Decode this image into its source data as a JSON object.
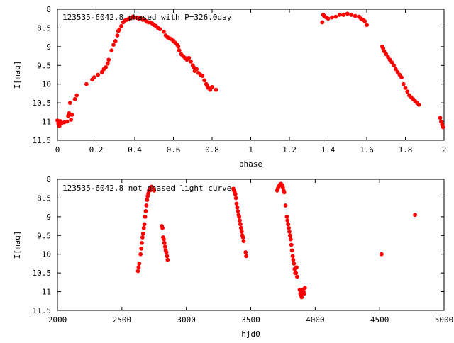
{
  "chart_data": [
    {
      "type": "scatter",
      "title": "123535-6042.8 phased with P=326.0day",
      "xlabel": "phase",
      "ylabel": "I[mag]",
      "xlim": [
        0,
        2
      ],
      "ylim": [
        11.5,
        8
      ],
      "y_inverted": true,
      "grid": false,
      "x_ticks": [
        "0",
        "0.2",
        "0.4",
        "0.6",
        "0.8",
        "1",
        "1.2",
        "1.4",
        "1.6",
        "1.8",
        "2"
      ],
      "x_tick_values": [
        0,
        0.2,
        0.4,
        0.6,
        0.8,
        1.0,
        1.2,
        1.4,
        1.6,
        1.8,
        2.0
      ],
      "y_ticks": [
        "8",
        "8.5",
        "9",
        "9.5",
        "10",
        "10.5",
        "11",
        "11.5"
      ],
      "y_tick_values": [
        8,
        8.5,
        9,
        9.5,
        10,
        10.5,
        11,
        11.5
      ],
      "marker_color": "#ff0000",
      "points": [
        [
          0.0,
          10.97
        ],
        [
          0.005,
          11.05
        ],
        [
          0.01,
          11.12
        ],
        [
          0.015,
          10.99
        ],
        [
          0.02,
          11.05
        ],
        [
          0.035,
          11.02
        ],
        [
          0.05,
          11.0
        ],
        [
          0.055,
          10.85
        ],
        [
          0.06,
          10.78
        ],
        [
          0.065,
          10.5
        ],
        [
          0.07,
          10.95
        ],
        [
          0.075,
          10.82
        ],
        [
          0.09,
          10.4
        ],
        [
          0.1,
          10.3
        ],
        [
          0.15,
          10.0
        ],
        [
          0.18,
          9.88
        ],
        [
          0.19,
          9.82
        ],
        [
          0.21,
          9.75
        ],
        [
          0.23,
          9.68
        ],
        [
          0.24,
          9.6
        ],
        [
          0.25,
          9.55
        ],
        [
          0.26,
          9.45
        ],
        [
          0.265,
          9.35
        ],
        [
          0.28,
          9.1
        ],
        [
          0.29,
          8.95
        ],
        [
          0.3,
          8.85
        ],
        [
          0.31,
          8.7
        ],
        [
          0.315,
          8.58
        ],
        [
          0.32,
          8.55
        ],
        [
          0.33,
          8.45
        ],
        [
          0.34,
          8.35
        ],
        [
          0.35,
          8.3
        ],
        [
          0.36,
          8.28
        ],
        [
          0.37,
          8.25
        ],
        [
          0.38,
          8.24
        ],
        [
          0.39,
          8.2
        ],
        [
          0.4,
          8.22
        ],
        [
          0.41,
          8.22
        ],
        [
          0.42,
          8.25
        ],
        [
          0.43,
          8.23
        ],
        [
          0.44,
          8.28
        ],
        [
          0.45,
          8.28
        ],
        [
          0.46,
          8.32
        ],
        [
          0.47,
          8.35
        ],
        [
          0.48,
          8.35
        ],
        [
          0.49,
          8.38
        ],
        [
          0.5,
          8.42
        ],
        [
          0.51,
          8.45
        ],
        [
          0.52,
          8.5
        ],
        [
          0.53,
          8.53
        ],
        [
          0.55,
          8.6
        ],
        [
          0.56,
          8.7
        ],
        [
          0.57,
          8.75
        ],
        [
          0.58,
          8.78
        ],
        [
          0.59,
          8.8
        ],
        [
          0.6,
          8.85
        ],
        [
          0.61,
          8.9
        ],
        [
          0.62,
          8.95
        ],
        [
          0.625,
          9.0
        ],
        [
          0.63,
          9.1
        ],
        [
          0.64,
          9.2
        ],
        [
          0.65,
          9.25
        ],
        [
          0.66,
          9.3
        ],
        [
          0.67,
          9.35
        ],
        [
          0.68,
          9.3
        ],
        [
          0.69,
          9.4
        ],
        [
          0.7,
          9.5
        ],
        [
          0.705,
          9.55
        ],
        [
          0.71,
          9.65
        ],
        [
          0.72,
          9.6
        ],
        [
          0.73,
          9.7
        ],
        [
          0.74,
          9.75
        ],
        [
          0.75,
          9.78
        ],
        [
          0.76,
          9.9
        ],
        [
          0.77,
          10.0
        ],
        [
          0.775,
          10.05
        ],
        [
          0.78,
          10.1
        ],
        [
          0.79,
          10.15
        ],
        [
          0.8,
          10.08
        ],
        [
          0.82,
          10.15
        ],
        [
          1.37,
          8.35
        ],
        [
          1.375,
          8.15
        ],
        [
          1.38,
          8.18
        ],
        [
          1.39,
          8.22
        ],
        [
          1.4,
          8.25
        ],
        [
          1.42,
          8.22
        ],
        [
          1.44,
          8.2
        ],
        [
          1.46,
          8.15
        ],
        [
          1.48,
          8.15
        ],
        [
          1.5,
          8.12
        ],
        [
          1.52,
          8.15
        ],
        [
          1.54,
          8.18
        ],
        [
          1.56,
          8.2
        ],
        [
          1.57,
          8.25
        ],
        [
          1.58,
          8.28
        ],
        [
          1.59,
          8.32
        ],
        [
          1.6,
          8.42
        ],
        [
          1.68,
          9.0
        ],
        [
          1.685,
          9.05
        ],
        [
          1.69,
          9.12
        ],
        [
          1.7,
          9.2
        ],
        [
          1.71,
          9.28
        ],
        [
          1.72,
          9.35
        ],
        [
          1.73,
          9.42
        ],
        [
          1.74,
          9.5
        ],
        [
          1.75,
          9.6
        ],
        [
          1.76,
          9.68
        ],
        [
          1.77,
          9.75
        ],
        [
          1.78,
          9.82
        ],
        [
          1.79,
          10.0
        ],
        [
          1.8,
          10.1
        ],
        [
          1.81,
          10.2
        ],
        [
          1.82,
          10.3
        ],
        [
          1.83,
          10.35
        ],
        [
          1.84,
          10.4
        ],
        [
          1.85,
          10.45
        ],
        [
          1.86,
          10.5
        ],
        [
          1.87,
          10.55
        ],
        [
          1.98,
          10.9
        ],
        [
          1.985,
          11.0
        ],
        [
          1.99,
          11.08
        ],
        [
          1.995,
          11.15
        ]
      ]
    },
    {
      "type": "scatter",
      "title": "123535-6042.8 not phased light curve",
      "xlabel": "hjd0",
      "ylabel": "I[mag]",
      "xlim": [
        2000,
        5000
      ],
      "ylim": [
        11.5,
        8
      ],
      "y_inverted": true,
      "grid": false,
      "x_ticks": [
        "2000",
        "2500",
        "3000",
        "3500",
        "4000",
        "4500",
        "5000"
      ],
      "x_tick_values": [
        2000,
        2500,
        3000,
        3500,
        4000,
        4500,
        5000
      ],
      "y_ticks": [
        "8",
        "8.5",
        "9",
        "9.5",
        "10",
        "10.5",
        "11",
        "11.5"
      ],
      "y_tick_values": [
        8,
        8.5,
        9,
        9.5,
        10,
        10.5,
        11,
        11.5
      ],
      "marker_color": "#ff0000",
      "points": [
        [
          2625,
          10.45
        ],
        [
          2630,
          10.35
        ],
        [
          2635,
          10.25
        ],
        [
          2645,
          10.0
        ],
        [
          2650,
          9.85
        ],
        [
          2655,
          9.7
        ],
        [
          2660,
          9.55
        ],
        [
          2665,
          9.45
        ],
        [
          2670,
          9.3
        ],
        [
          2675,
          9.2
        ],
        [
          2680,
          9.0
        ],
        [
          2685,
          8.85
        ],
        [
          2690,
          8.7
        ],
        [
          2695,
          8.55
        ],
        [
          2700,
          8.45
        ],
        [
          2705,
          8.38
        ],
        [
          2710,
          8.3
        ],
        [
          2715,
          8.3
        ],
        [
          2720,
          8.25
        ],
        [
          2725,
          8.28
        ],
        [
          2730,
          8.2
        ],
        [
          2735,
          8.22
        ],
        [
          2740,
          8.25
        ],
        [
          2745,
          8.28
        ],
        [
          2750,
          8.3
        ],
        [
          2810,
          9.25
        ],
        [
          2815,
          9.3
        ],
        [
          2820,
          9.55
        ],
        [
          2825,
          9.6
        ],
        [
          2830,
          9.7
        ],
        [
          2835,
          9.8
        ],
        [
          2840,
          9.9
        ],
        [
          2845,
          9.95
        ],
        [
          2850,
          10.05
        ],
        [
          2855,
          10.15
        ],
        [
          3365,
          8.25
        ],
        [
          3370,
          8.3
        ],
        [
          3375,
          8.35
        ],
        [
          3380,
          8.4
        ],
        [
          3385,
          8.5
        ],
        [
          3390,
          8.65
        ],
        [
          3395,
          8.75
        ],
        [
          3400,
          8.85
        ],
        [
          3405,
          8.95
        ],
        [
          3410,
          9.0
        ],
        [
          3415,
          9.1
        ],
        [
          3420,
          9.2
        ],
        [
          3425,
          9.3
        ],
        [
          3430,
          9.4
        ],
        [
          3435,
          9.5
        ],
        [
          3440,
          9.55
        ],
        [
          3445,
          9.65
        ],
        [
          3460,
          9.95
        ],
        [
          3465,
          10.05
        ],
        [
          3705,
          8.3
        ],
        [
          3710,
          8.25
        ],
        [
          3715,
          8.2
        ],
        [
          3720,
          8.18
        ],
        [
          3725,
          8.15
        ],
        [
          3730,
          8.13
        ],
        [
          3735,
          8.12
        ],
        [
          3740,
          8.14
        ],
        [
          3745,
          8.17
        ],
        [
          3750,
          8.22
        ],
        [
          3755,
          8.3
        ],
        [
          3760,
          8.35
        ],
        [
          3770,
          8.7
        ],
        [
          3780,
          9.0
        ],
        [
          3785,
          9.1
        ],
        [
          3790,
          9.2
        ],
        [
          3795,
          9.3
        ],
        [
          3800,
          9.4
        ],
        [
          3805,
          9.5
        ],
        [
          3810,
          9.6
        ],
        [
          3815,
          9.75
        ],
        [
          3820,
          9.9
        ],
        [
          3825,
          10.05
        ],
        [
          3830,
          10.15
        ],
        [
          3835,
          10.25
        ],
        [
          3840,
          10.4
        ],
        [
          3845,
          10.5
        ],
        [
          3850,
          10.5
        ],
        [
          3855,
          10.35
        ],
        [
          3860,
          10.6
        ],
        [
          3880,
          10.95
        ],
        [
          3885,
          11.05
        ],
        [
          3890,
          11.1
        ],
        [
          3895,
          11.15
        ],
        [
          3900,
          11.05
        ],
        [
          3905,
          10.95
        ],
        [
          3910,
          11.0
        ],
        [
          3915,
          11.05
        ],
        [
          3920,
          10.9
        ],
        [
          4515,
          10.0
        ],
        [
          4775,
          8.95
        ]
      ]
    }
  ]
}
